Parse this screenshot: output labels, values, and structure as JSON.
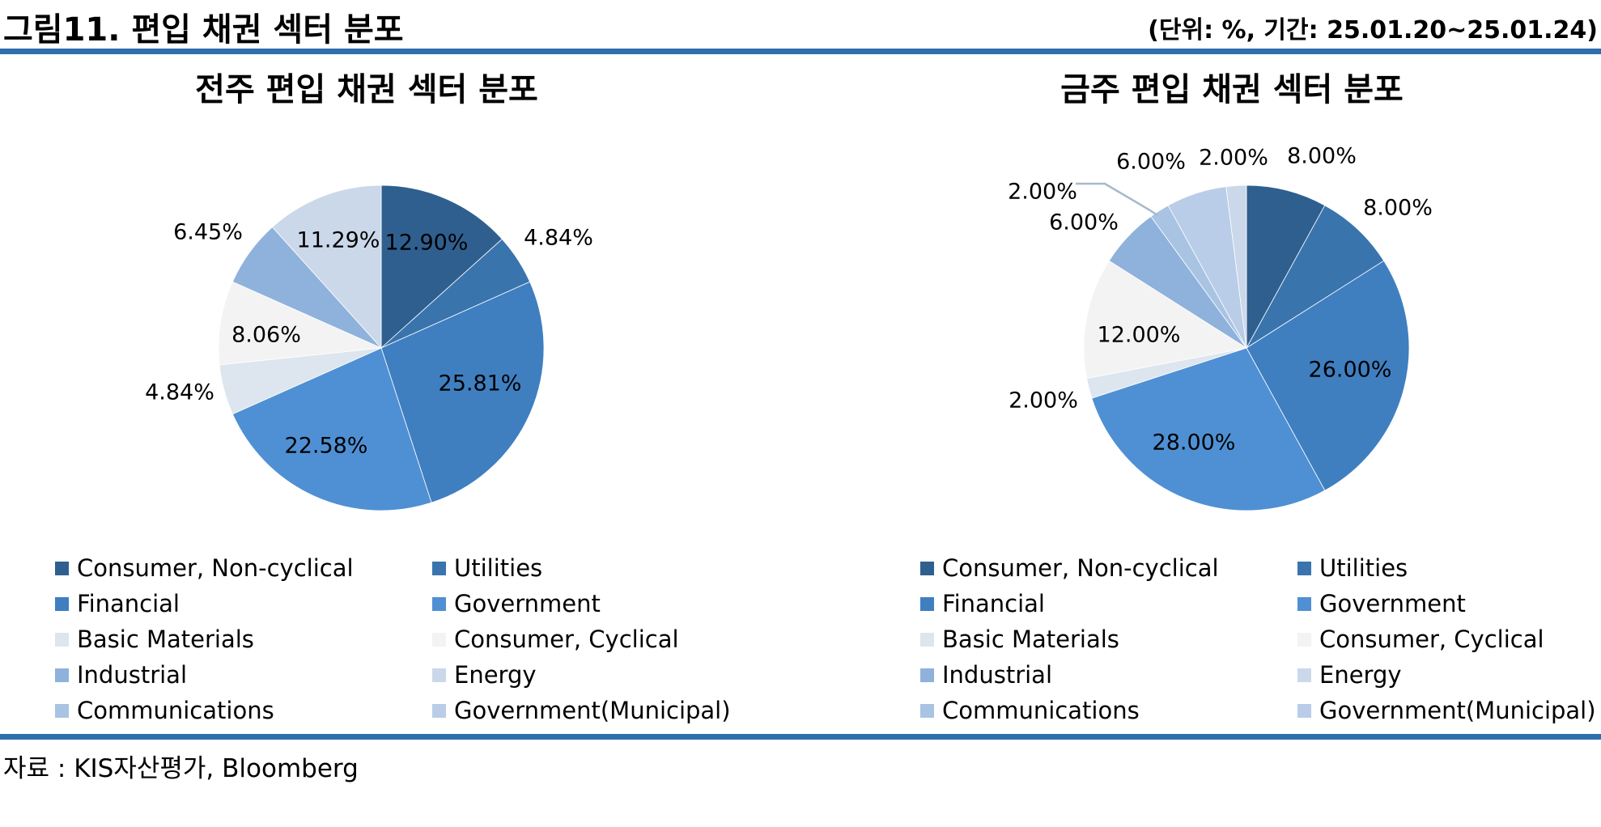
{
  "figure": {
    "title": "그림11. 편입 채권 섹터 분포",
    "unit_note": "(단위: %, 기간: 25.01.20~25.01.24)",
    "source": "자료 : KIS자산평가, Bloomberg"
  },
  "colors": {
    "rule": "#2e6fad",
    "Consumer, Non-cyclical": "#2f5f8f",
    "Utilities": "#3a74ad",
    "Financial": "#3f7fc0",
    "Government": "#4f90d4",
    "Basic Materials": "#dde5ef",
    "Consumer, Cyclical": "#f3f3f3",
    "Industrial": "#8fb2dc",
    "Energy": "#cbd8ea",
    "Communications": "#a9c3e3",
    "Government(Municipal)": "#b9cde8"
  },
  "legend_categories": [
    "Consumer, Non-cyclical",
    "Utilities",
    "Financial",
    "Government",
    "Basic Materials",
    "Consumer, Cyclical",
    "Industrial",
    "Energy",
    "Communications",
    "Government(Municipal)"
  ],
  "chart_data": [
    {
      "type": "pie",
      "title": "전주 편입 채권 섹터 분포",
      "start_angle_deg": 0,
      "direction": "clockwise",
      "slices": [
        {
          "category": "Consumer, Non-cyclical",
          "value": 12.9,
          "label": "12.90%"
        },
        {
          "category": "Utilities",
          "value": 4.84,
          "label": "4.84%"
        },
        {
          "category": "Financial",
          "value": 25.81,
          "label": "25.81%"
        },
        {
          "category": "Government",
          "value": 22.58,
          "label": "22.58%"
        },
        {
          "category": "Basic Materials",
          "value": 4.84,
          "label": "4.84%"
        },
        {
          "category": "Consumer, Cyclical",
          "value": 8.06,
          "label": "8.06%"
        },
        {
          "category": "Industrial",
          "value": 6.45,
          "label": "6.45%"
        },
        {
          "category": "Energy",
          "value": 11.29,
          "label": "11.29%"
        }
      ]
    },
    {
      "type": "pie",
      "title": "금주 편입 채권 섹터 분포",
      "start_angle_deg": 0,
      "direction": "clockwise",
      "slices": [
        {
          "category": "Consumer, Non-cyclical",
          "value": 8.0,
          "label": "8.00%"
        },
        {
          "category": "Utilities",
          "value": 8.0,
          "label": "8.00%"
        },
        {
          "category": "Financial",
          "value": 26.0,
          "label": "26.00%"
        },
        {
          "category": "Government",
          "value": 28.0,
          "label": "28.00%"
        },
        {
          "category": "Basic Materials",
          "value": 2.0,
          "label": "2.00%"
        },
        {
          "category": "Consumer, Cyclical",
          "value": 12.0,
          "label": "12.00%"
        },
        {
          "category": "Industrial",
          "value": 6.0,
          "label": "6.00%"
        },
        {
          "category": "Communications",
          "value": 2.0,
          "label": "2.00%"
        },
        {
          "category": "Government(Municipal)",
          "value": 6.0,
          "label": "6.00%"
        },
        {
          "category": "Energy",
          "value": 2.0,
          "label": "2.00%"
        }
      ]
    }
  ]
}
